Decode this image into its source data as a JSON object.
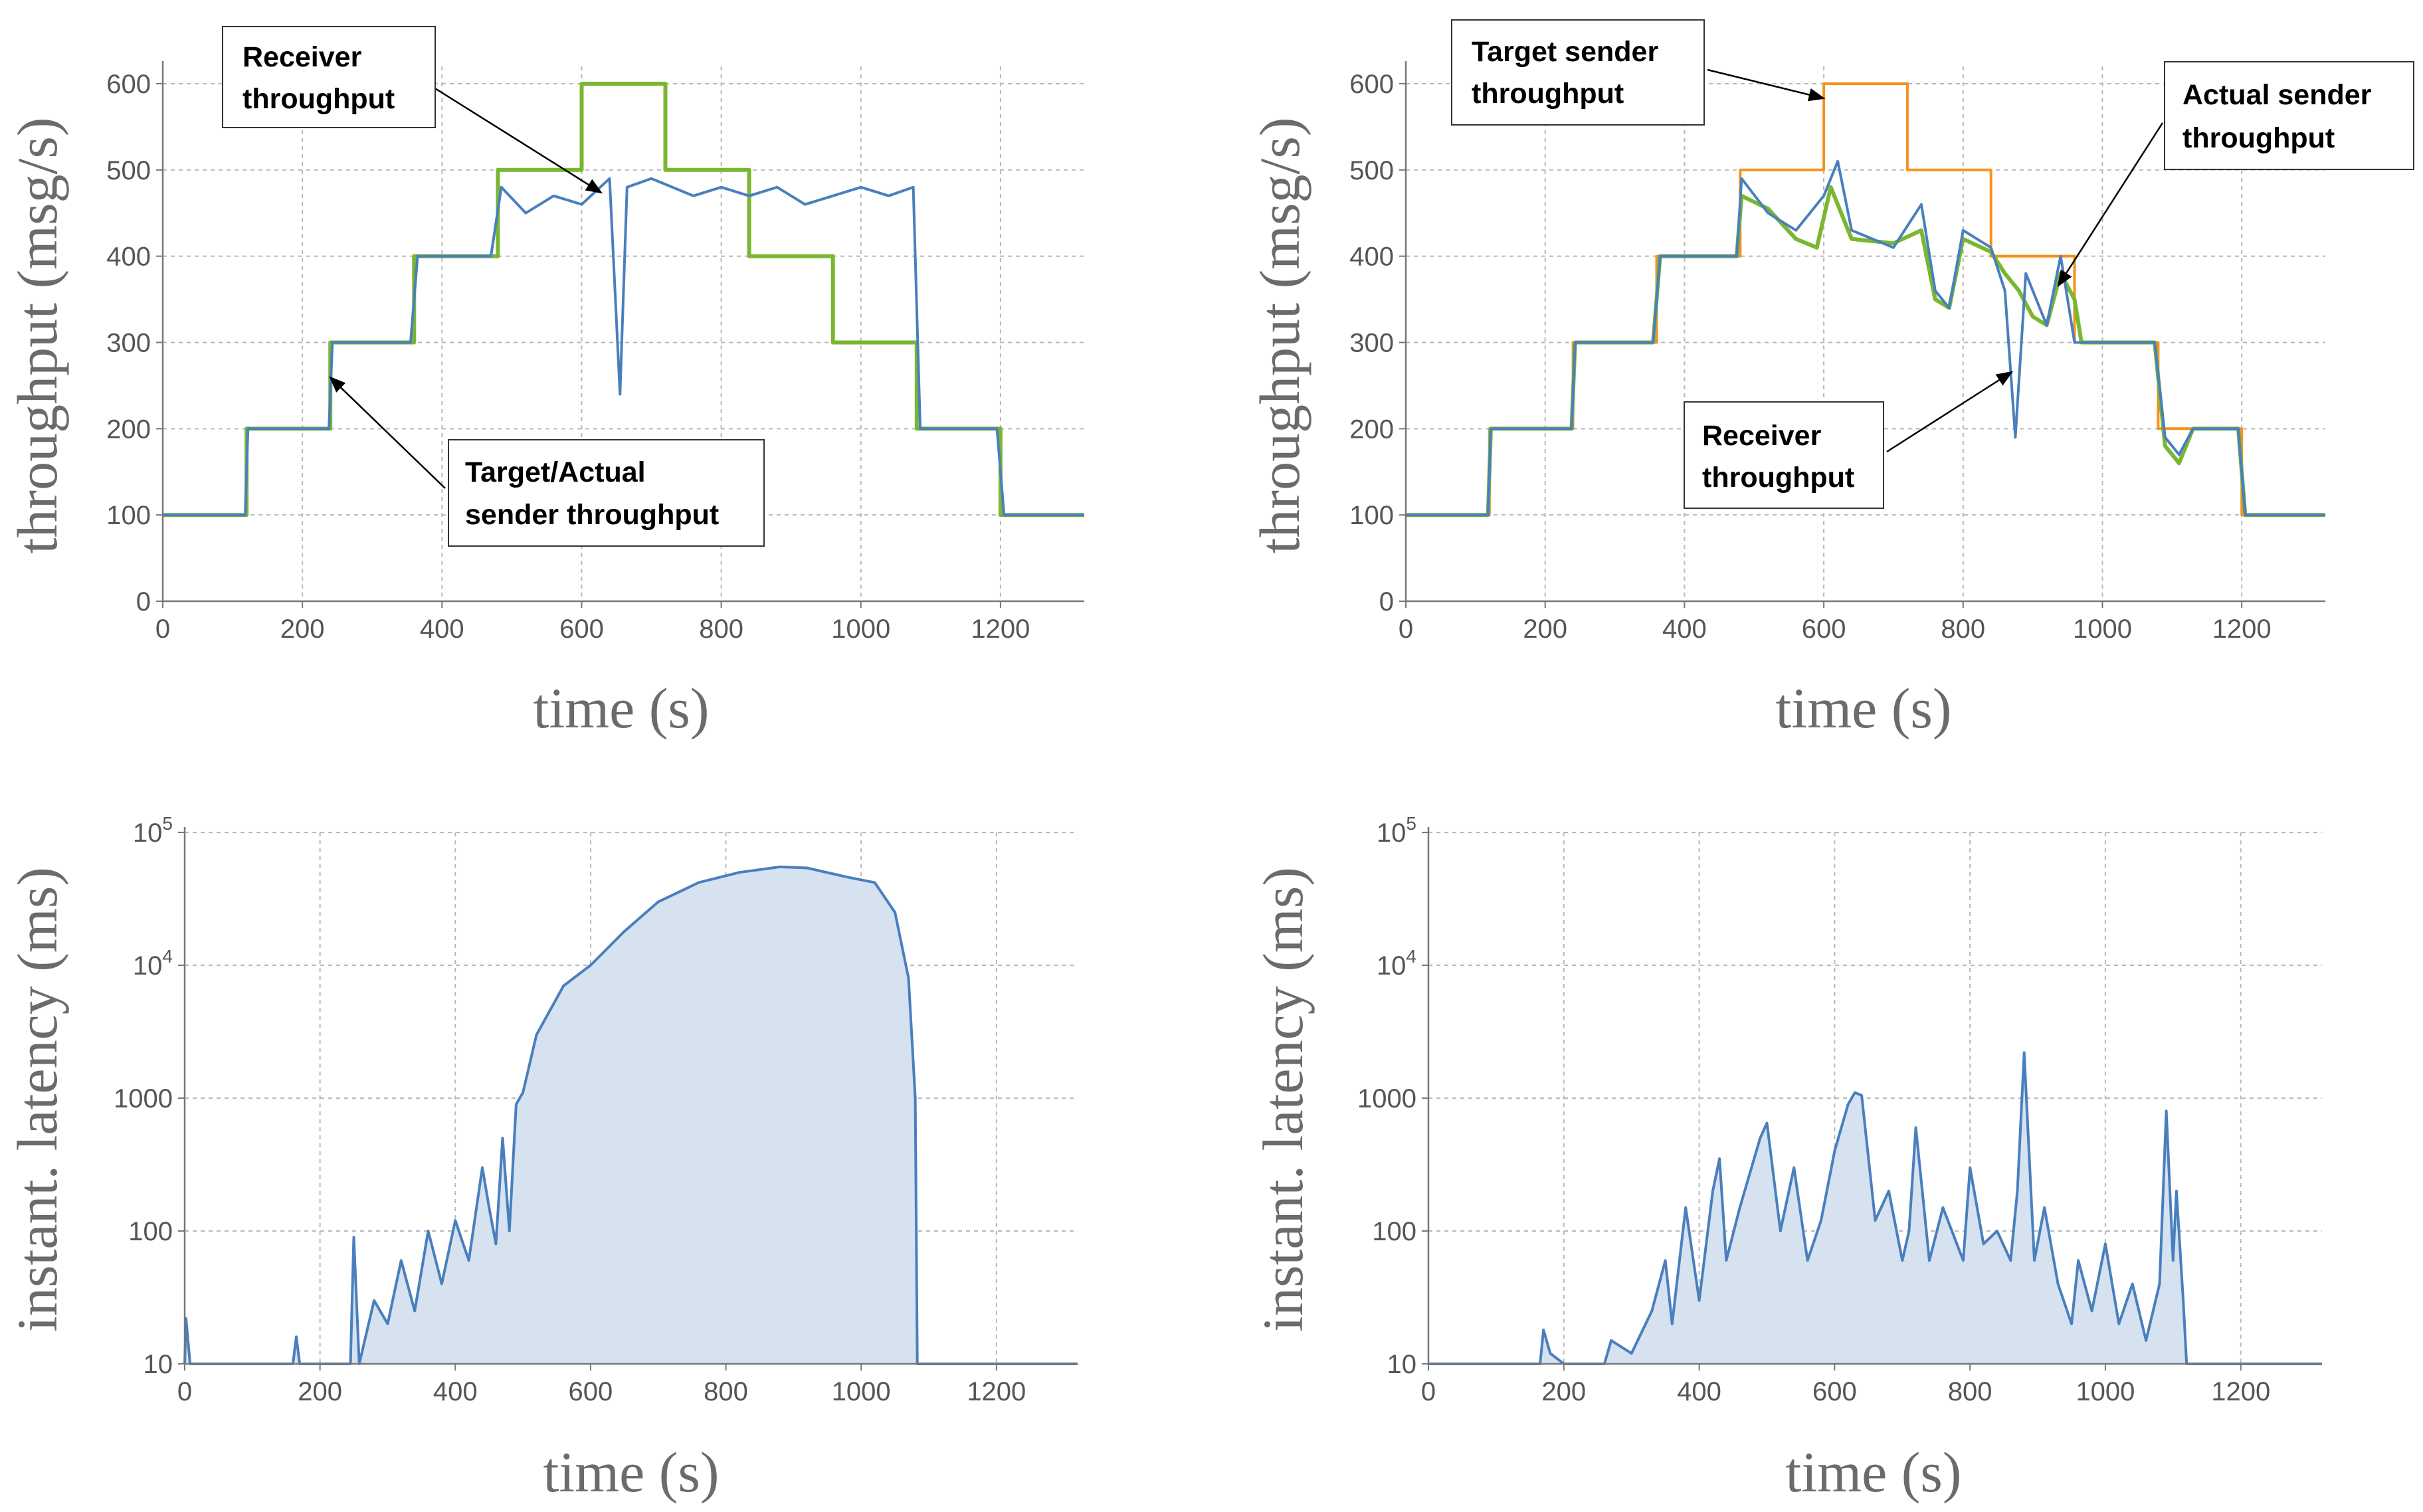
{
  "colors": {
    "receiver": "#4a7fbe",
    "target": "#f5921e",
    "actual": "#7ab730",
    "latency_fill": "#d6e2f0",
    "grid": "#b8b8b8",
    "axis": "#777777"
  },
  "chart_data": [
    {
      "type": "line",
      "xlabel": "time (s)",
      "ylabel": "throughput (msg/s)",
      "xlim": [
        0,
        1320
      ],
      "ylim": [
        0,
        620
      ],
      "xticks": [
        0,
        200,
        400,
        600,
        800,
        1000,
        1200
      ],
      "yticks": [
        0,
        100,
        200,
        300,
        400,
        500,
        600
      ],
      "series": [
        {
          "name": "Target sender throughput",
          "color_key": "target",
          "steps": [
            [
              0,
              100
            ],
            [
              120,
              200
            ],
            [
              240,
              300
            ],
            [
              360,
              400
            ],
            [
              480,
              500
            ],
            [
              600,
              600
            ],
            [
              720,
              500
            ],
            [
              840,
              400
            ],
            [
              960,
              300
            ],
            [
              1080,
              200
            ],
            [
              1200,
              100
            ],
            [
              1320,
              100
            ]
          ]
        },
        {
          "name": "Actual sender throughput",
          "color_key": "actual",
          "steps": [
            [
              0,
              100
            ],
            [
              120,
              200
            ],
            [
              240,
              300
            ],
            [
              360,
              400
            ],
            [
              480,
              500
            ],
            [
              600,
              600
            ],
            [
              720,
              500
            ],
            [
              840,
              400
            ],
            [
              960,
              300
            ],
            [
              1080,
              200
            ],
            [
              1200,
              100
            ],
            [
              1320,
              100
            ]
          ]
        },
        {
          "name": "Receiver throughput",
          "color_key": "receiver",
          "points": [
            [
              0,
              100
            ],
            [
              118,
              100
            ],
            [
              122,
              200
            ],
            [
              238,
              200
            ],
            [
              243,
              300
            ],
            [
              355,
              300
            ],
            [
              365,
              400
            ],
            [
              470,
              400
            ],
            [
              485,
              480
            ],
            [
              520,
              450
            ],
            [
              560,
              470
            ],
            [
              600,
              460
            ],
            [
              640,
              490
            ],
            [
              655,
              240
            ],
            [
              665,
              480
            ],
            [
              700,
              490
            ],
            [
              760,
              470
            ],
            [
              800,
              480
            ],
            [
              840,
              470
            ],
            [
              880,
              480
            ],
            [
              920,
              460
            ],
            [
              960,
              470
            ],
            [
              1000,
              480
            ],
            [
              1040,
              470
            ],
            [
              1075,
              480
            ],
            [
              1085,
              200
            ],
            [
              1195,
              200
            ],
            [
              1205,
              100
            ],
            [
              1320,
              100
            ]
          ]
        }
      ],
      "annotations": [
        {
          "text": [
            "Receiver",
            "throughput"
          ]
        },
        {
          "text": [
            "Target/Actual",
            "sender throughput"
          ]
        }
      ]
    },
    {
      "type": "line",
      "xlabel": "time (s)",
      "ylabel": "throughput (msg/s)",
      "xlim": [
        0,
        1320
      ],
      "ylim": [
        0,
        620
      ],
      "xticks": [
        0,
        200,
        400,
        600,
        800,
        1000,
        1200
      ],
      "yticks": [
        0,
        100,
        200,
        300,
        400,
        500,
        600
      ],
      "series": [
        {
          "name": "Target sender throughput",
          "color_key": "target",
          "steps": [
            [
              0,
              100
            ],
            [
              120,
              200
            ],
            [
              240,
              300
            ],
            [
              360,
              400
            ],
            [
              480,
              500
            ],
            [
              600,
              600
            ],
            [
              720,
              500
            ],
            [
              840,
              400
            ],
            [
              960,
              300
            ],
            [
              1080,
              200
            ],
            [
              1200,
              100
            ],
            [
              1320,
              100
            ]
          ]
        },
        {
          "name": "Actual sender throughput",
          "color_key": "actual",
          "points": [
            [
              0,
              100
            ],
            [
              118,
              100
            ],
            [
              122,
              200
            ],
            [
              238,
              200
            ],
            [
              243,
              300
            ],
            [
              355,
              300
            ],
            [
              365,
              400
            ],
            [
              475,
              400
            ],
            [
              482,
              470
            ],
            [
              520,
              455
            ],
            [
              560,
              420
            ],
            [
              590,
              410
            ],
            [
              610,
              480
            ],
            [
              640,
              420
            ],
            [
              700,
              415
            ],
            [
              740,
              430
            ],
            [
              760,
              350
            ],
            [
              780,
              340
            ],
            [
              800,
              420
            ],
            [
              840,
              405
            ],
            [
              860,
              380
            ],
            [
              880,
              360
            ],
            [
              900,
              330
            ],
            [
              920,
              320
            ],
            [
              940,
              380
            ],
            [
              960,
              350
            ],
            [
              970,
              300
            ],
            [
              1075,
              300
            ],
            [
              1090,
              180
            ],
            [
              1110,
              160
            ],
            [
              1130,
              200
            ],
            [
              1195,
              200
            ],
            [
              1205,
              100
            ],
            [
              1320,
              100
            ]
          ]
        },
        {
          "name": "Receiver throughput",
          "color_key": "receiver",
          "points": [
            [
              0,
              100
            ],
            [
              118,
              100
            ],
            [
              122,
              200
            ],
            [
              238,
              200
            ],
            [
              243,
              300
            ],
            [
              355,
              300
            ],
            [
              365,
              400
            ],
            [
              475,
              400
            ],
            [
              482,
              490
            ],
            [
              520,
              450
            ],
            [
              560,
              430
            ],
            [
              600,
              470
            ],
            [
              620,
              510
            ],
            [
              640,
              430
            ],
            [
              700,
              410
            ],
            [
              740,
              460
            ],
            [
              760,
              360
            ],
            [
              780,
              340
            ],
            [
              800,
              430
            ],
            [
              840,
              410
            ],
            [
              860,
              360
            ],
            [
              875,
              190
            ],
            [
              890,
              380
            ],
            [
              920,
              320
            ],
            [
              940,
              400
            ],
            [
              960,
              300
            ],
            [
              1075,
              300
            ],
            [
              1090,
              190
            ],
            [
              1110,
              170
            ],
            [
              1130,
              200
            ],
            [
              1195,
              200
            ],
            [
              1205,
              100
            ],
            [
              1320,
              100
            ]
          ]
        }
      ],
      "annotations": [
        {
          "text": [
            "Target sender",
            "throughput"
          ]
        },
        {
          "text": [
            "Actual sender",
            "throughput"
          ]
        },
        {
          "text": [
            "Receiver",
            "throughput"
          ]
        }
      ]
    },
    {
      "type": "area",
      "xlabel": "time (s)",
      "ylabel": "instant. latency (ms)",
      "yscale": "log",
      "xlim": [
        0,
        1320
      ],
      "ylim": [
        10,
        100000
      ],
      "xticks": [
        0,
        200,
        400,
        600,
        800,
        1000,
        1200
      ],
      "yticks": [
        {
          "value": 10,
          "label": "10"
        },
        {
          "value": 100,
          "label": "100"
        },
        {
          "value": 1000,
          "label": "1000"
        },
        {
          "value": 10000,
          "base": "10",
          "exp": "4"
        },
        {
          "value": 100000,
          "base": "10",
          "exp": "5"
        }
      ],
      "series": [
        {
          "name": "instant latency",
          "color_key": "receiver",
          "points": [
            [
              0,
              10
            ],
            [
              2,
              22
            ],
            [
              8,
              10
            ],
            [
              160,
              10
            ],
            [
              165,
              16
            ],
            [
              170,
              10
            ],
            [
              245,
              10
            ],
            [
              250,
              90
            ],
            [
              258,
              10
            ],
            [
              280,
              30
            ],
            [
              300,
              20
            ],
            [
              320,
              60
            ],
            [
              340,
              25
            ],
            [
              360,
              100
            ],
            [
              380,
              40
            ],
            [
              400,
              120
            ],
            [
              420,
              60
            ],
            [
              440,
              300
            ],
            [
              450,
              150
            ],
            [
              460,
              80
            ],
            [
              470,
              500
            ],
            [
              480,
              100
            ],
            [
              490,
              900
            ],
            [
              500,
              1100
            ],
            [
              520,
              3000
            ],
            [
              560,
              7000
            ],
            [
              600,
              10000
            ],
            [
              650,
              18000
            ],
            [
              700,
              30000
            ],
            [
              760,
              42000
            ],
            [
              820,
              50000
            ],
            [
              880,
              55000
            ],
            [
              920,
              54000
            ],
            [
              980,
              46000
            ],
            [
              1020,
              42000
            ],
            [
              1050,
              25000
            ],
            [
              1070,
              8000
            ],
            [
              1080,
              1000
            ],
            [
              1083,
              10
            ],
            [
              1320,
              10
            ]
          ]
        }
      ]
    },
    {
      "type": "area",
      "xlabel": "time (s)",
      "ylabel": "instant. latency (ms)",
      "yscale": "log",
      "xlim": [
        0,
        1320
      ],
      "ylim": [
        10,
        100000
      ],
      "xticks": [
        0,
        200,
        400,
        600,
        800,
        1000,
        1200
      ],
      "yticks": [
        {
          "value": 10,
          "label": "10"
        },
        {
          "value": 100,
          "label": "100"
        },
        {
          "value": 1000,
          "label": "1000"
        },
        {
          "value": 10000,
          "base": "10",
          "exp": "4"
        },
        {
          "value": 100000,
          "base": "10",
          "exp": "5"
        }
      ],
      "series": [
        {
          "name": "instant latency",
          "color_key": "receiver",
          "points": [
            [
              0,
              10
            ],
            [
              165,
              10
            ],
            [
              170,
              18
            ],
            [
              180,
              12
            ],
            [
              200,
              10
            ],
            [
              260,
              10
            ],
            [
              270,
              15
            ],
            [
              300,
              12
            ],
            [
              330,
              25
            ],
            [
              350,
              60
            ],
            [
              360,
              20
            ],
            [
              380,
              150
            ],
            [
              400,
              30
            ],
            [
              420,
              200
            ],
            [
              430,
              350
            ],
            [
              440,
              60
            ],
            [
              460,
              150
            ],
            [
              490,
              500
            ],
            [
              500,
              650
            ],
            [
              520,
              100
            ],
            [
              540,
              300
            ],
            [
              560,
              60
            ],
            [
              580,
              120
            ],
            [
              600,
              400
            ],
            [
              620,
              900
            ],
            [
              630,
              1100
            ],
            [
              640,
              1050
            ],
            [
              660,
              120
            ],
            [
              680,
              200
            ],
            [
              700,
              60
            ],
            [
              710,
              100
            ],
            [
              720,
              600
            ],
            [
              740,
              60
            ],
            [
              760,
              150
            ],
            [
              790,
              60
            ],
            [
              800,
              300
            ],
            [
              820,
              80
            ],
            [
              840,
              100
            ],
            [
              860,
              60
            ],
            [
              870,
              200
            ],
            [
              880,
              2200
            ],
            [
              895,
              60
            ],
            [
              910,
              150
            ],
            [
              930,
              40
            ],
            [
              950,
              20
            ],
            [
              960,
              60
            ],
            [
              980,
              25
            ],
            [
              1000,
              80
            ],
            [
              1020,
              20
            ],
            [
              1040,
              40
            ],
            [
              1060,
              15
            ],
            [
              1080,
              40
            ],
            [
              1090,
              800
            ],
            [
              1100,
              60
            ],
            [
              1105,
              200
            ],
            [
              1115,
              30
            ],
            [
              1120,
              10
            ],
            [
              1320,
              10
            ]
          ]
        }
      ]
    }
  ]
}
